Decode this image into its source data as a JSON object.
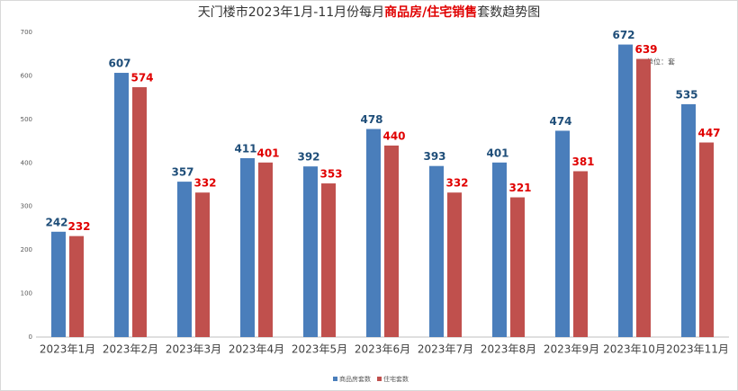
{
  "chart_data": {
    "type": "bar",
    "title_parts": [
      "天门楼市2023年1月-11月份每月",
      "商品房/住宅销售",
      "套数趋势图"
    ],
    "annotation": "单位：套",
    "categories": [
      "2023年1月",
      "2023年2月",
      "2023年3月",
      "2023年4月",
      "2023年5月",
      "2023年6月",
      "2023年7月",
      "2023年8月",
      "2023年9月",
      "2023年10月",
      "2023年11月"
    ],
    "series": [
      {
        "name": "商品房套数",
        "color": "#4a7ebb",
        "label_color": "#1f4e79",
        "values": [
          242,
          607,
          357,
          411,
          392,
          478,
          393,
          401,
          474,
          672,
          535
        ]
      },
      {
        "name": "住宅套数",
        "color": "#c0504d",
        "label_color": "#e00000",
        "values": [
          232,
          574,
          332,
          401,
          353,
          440,
          332,
          321,
          381,
          639,
          447
        ]
      }
    ],
    "ylim": [
      0,
      700
    ],
    "yticks": [
      0,
      100,
      200,
      300,
      400,
      500,
      600,
      700
    ],
    "grid": false,
    "legend": "bottom"
  }
}
